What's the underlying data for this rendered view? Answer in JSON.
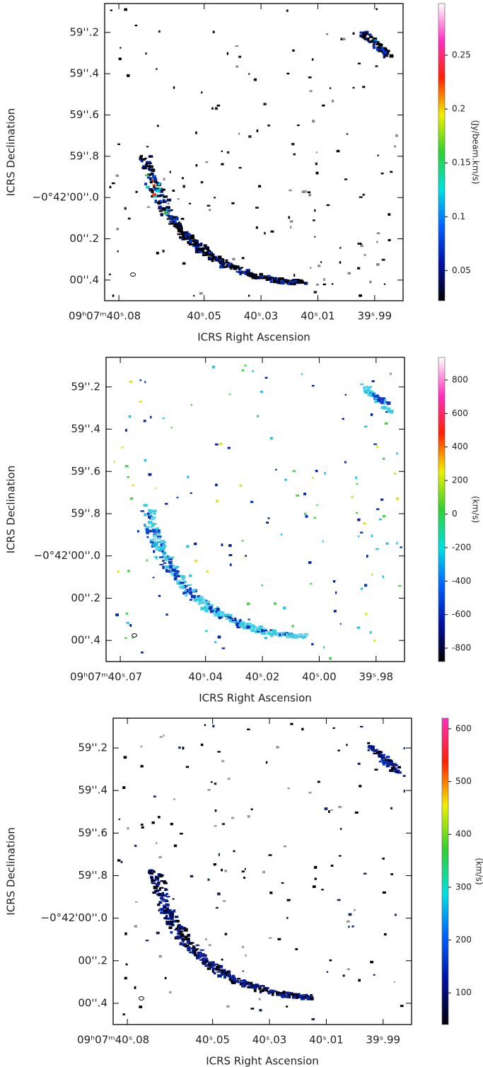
{
  "chart_data": [
    {
      "type": "image-map",
      "xlabel": "ICRS Right Ascension",
      "ylabel": "ICRS Declination",
      "xlim": [
        40.085,
        39.98
      ],
      "xticks": [
        {
          "value": 40.08,
          "label": "09ʰ07ᵐ40ˢ.08"
        },
        {
          "value": 40.05,
          "label": "40ˢ.05"
        },
        {
          "value": 40.03,
          "label": "40ˢ.03"
        },
        {
          "value": 40.01,
          "label": "40ˢ.01"
        },
        {
          "value": 39.99,
          "label": "39ˢ.99"
        }
      ],
      "ylim": [
        60.5,
        59.06
      ],
      "yticks": [
        {
          "value": 59.2,
          "label": "59''.2"
        },
        {
          "value": 59.4,
          "label": "59''.4"
        },
        {
          "value": 59.6,
          "label": "59''.6"
        },
        {
          "value": 59.8,
          "label": "59''.8"
        },
        {
          "value": 60.0,
          "label": "−0°42'00''.0"
        },
        {
          "value": 60.2,
          "label": "00''.2"
        },
        {
          "value": 60.4,
          "label": "00''.4"
        }
      ],
      "colorbar_label": "(Jy/beam.km/s)",
      "clim": [
        0.022,
        0.298
      ],
      "cticks": [
        0.05,
        0.1,
        0.15,
        0.2,
        0.25
      ],
      "colormap": [
        "#000000",
        "#0010a0",
        "#0060ff",
        "#00e0e0",
        "#30d030",
        "#f0f000",
        "#ff2000",
        "#ff30c0",
        "#ffffff"
      ]
    },
    {
      "type": "image-map",
      "xlabel": "ICRS Right Ascension",
      "ylabel": "ICRS Declination",
      "xlim": [
        40.075,
        39.97
      ],
      "xticks": [
        {
          "value": 40.07,
          "label": "09ʰ07ᵐ40ˢ.07"
        },
        {
          "value": 40.04,
          "label": "40ˢ.04"
        },
        {
          "value": 40.02,
          "label": "40ˢ.02"
        },
        {
          "value": 40.0,
          "label": "40ˢ.00"
        },
        {
          "value": 39.98,
          "label": "39ˢ.98"
        }
      ],
      "ylim": [
        60.5,
        59.06
      ],
      "yticks": [
        {
          "value": 59.2,
          "label": "59''.2"
        },
        {
          "value": 59.4,
          "label": "59''.4"
        },
        {
          "value": 59.6,
          "label": "59''.6"
        },
        {
          "value": 59.8,
          "label": "59''.8"
        },
        {
          "value": 60.0,
          "label": "−0°42'00''.0"
        },
        {
          "value": 60.2,
          "label": "00''.2"
        },
        {
          "value": 60.4,
          "label": "00''.4"
        }
      ],
      "colorbar_label": "(km/s)",
      "clim": [
        -880,
        935
      ],
      "cticks": [
        -800,
        -600,
        -400,
        -200,
        0,
        200,
        400,
        600,
        800
      ],
      "colormap": [
        "#000000",
        "#0010a0",
        "#0060ff",
        "#00e0e0",
        "#30d030",
        "#f0f000",
        "#ff2000",
        "#ff30c0",
        "#ffffff"
      ]
    },
    {
      "type": "image-map",
      "xlabel": "ICRS Right Ascension",
      "ylabel": "ICRS Declination",
      "xlim": [
        40.085,
        39.98
      ],
      "xticks": [
        {
          "value": 40.08,
          "label": "09ʰ07ᵐ40ˢ.08"
        },
        {
          "value": 40.05,
          "label": "40ˢ.05"
        },
        {
          "value": 40.03,
          "label": "40ˢ.03"
        },
        {
          "value": 40.01,
          "label": "40ˢ.01"
        },
        {
          "value": 39.99,
          "label": "39ˢ.99"
        }
      ],
      "ylim": [
        60.5,
        59.06
      ],
      "yticks": [
        {
          "value": 59.2,
          "label": "59''.2"
        },
        {
          "value": 59.4,
          "label": "59''.4"
        },
        {
          "value": 59.6,
          "label": "59''.6"
        },
        {
          "value": 59.8,
          "label": "59''.8"
        },
        {
          "value": 60.0,
          "label": "−0°42'00''.0"
        },
        {
          "value": 60.2,
          "label": "00''.2"
        },
        {
          "value": 60.4,
          "label": "00''.4"
        }
      ],
      "colorbar_label": "(km/s)",
      "clim": [
        40,
        620
      ],
      "cticks": [
        100,
        200,
        300,
        400,
        500,
        600
      ],
      "colormap": [
        "#000000",
        "#0010a0",
        "#0060ff",
        "#00e0e0",
        "#30d030",
        "#f0f000",
        "#ff2000",
        "#ff30c0"
      ]
    }
  ]
}
